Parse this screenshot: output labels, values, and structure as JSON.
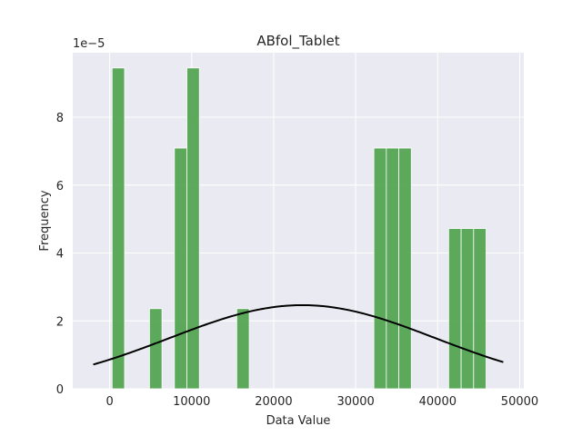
{
  "chart_data": {
    "type": "bar",
    "title": "ABfol_Tablet",
    "xlabel": "Data Value",
    "ylabel": "Frequency",
    "y_offset_text": "1e−5",
    "xlim": [
      -4500,
      50500
    ],
    "ylim": [
      0,
      9.9
    ],
    "x_ticks": [
      0,
      10000,
      20000,
      30000,
      40000,
      50000
    ],
    "y_ticks": [
      0,
      2,
      4,
      6,
      8
    ],
    "grid": true,
    "bar_color": "#55a655",
    "background_color": "#eaeaf2",
    "grid_color": "#ffffff",
    "curve_color": "#000000",
    "bin_width": 1520,
    "bins": [
      {
        "x0": 300,
        "x1": 1820,
        "value": 9.45
      },
      {
        "x0": 4860,
        "x1": 6380,
        "value": 2.36
      },
      {
        "x0": 7900,
        "x1": 9420,
        "value": 7.09
      },
      {
        "x0": 9420,
        "x1": 10940,
        "value": 9.45
      },
      {
        "x0": 15500,
        "x1": 17020,
        "value": 2.36
      },
      {
        "x0": 32220,
        "x1": 33740,
        "value": 7.09
      },
      {
        "x0": 33740,
        "x1": 35260,
        "value": 7.09
      },
      {
        "x0": 35260,
        "x1": 36780,
        "value": 7.09
      },
      {
        "x0": 41340,
        "x1": 42860,
        "value": 4.72
      },
      {
        "x0": 42860,
        "x1": 44380,
        "value": 4.72
      },
      {
        "x0": 44380,
        "x1": 45900,
        "value": 4.72
      }
    ],
    "normal_curve": {
      "mean": 23500,
      "std": 16200,
      "x_range": [
        -2000,
        48000
      ]
    }
  }
}
